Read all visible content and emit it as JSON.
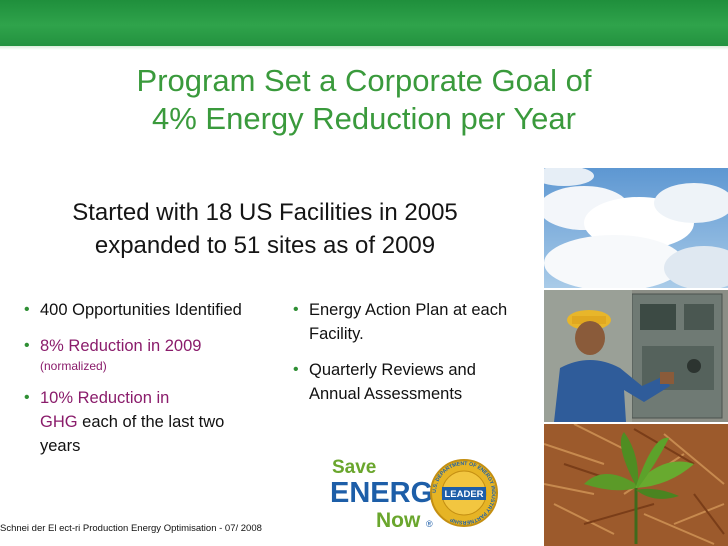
{
  "title": {
    "line1": "Program Set a Corporate Goal of",
    "line2": "4% Energy Reduction per Year"
  },
  "subtitle": {
    "line1": "Started with 18 US Facilities in 2005",
    "line2": "expanded to 51 sites as of 2009"
  },
  "left_bullets": [
    {
      "text": "400 Opportunities Identified"
    },
    {
      "text": "8% Reduction in 2009",
      "note": "(normalized)"
    },
    {
      "highlight_a": "10% Reduction in",
      "highlight_b": "GHG",
      "rest": " each of the last two years"
    }
  ],
  "right_bullets": [
    {
      "text": "Energy Action Plan at each Facility."
    },
    {
      "text": "Quarterly Reviews and Annual Assessments"
    }
  ],
  "logo": {
    "save": "Save",
    "energy": "ENERGY",
    "now": "Now",
    "reg": "®",
    "badge_center": "LEADER",
    "badge_ring": "U.S. DEPARTMENT OF ENERGY INDUSTRY PARTNERSHIP"
  },
  "footer": {
    "text": "Schnei der  El ect-ri Production Energy Optimisation  -  07/ 2008"
  },
  "colors": {
    "title": "#3a9a3c",
    "accent_bar": "#2fa34b",
    "highlight": "#8a1c6b"
  }
}
